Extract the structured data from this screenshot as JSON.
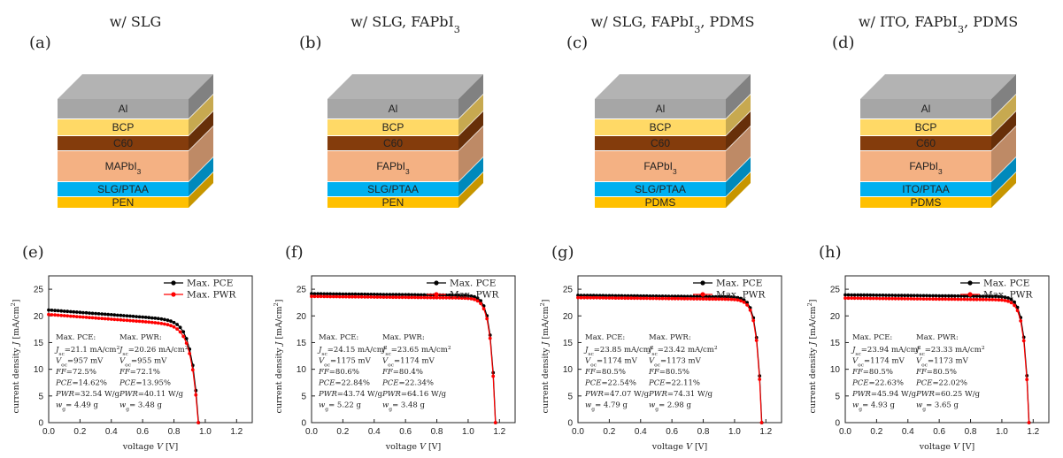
{
  "panels": [
    {
      "title": "w/ SLG",
      "stack_label": "(a)",
      "layers": [
        "Al",
        "BCP",
        "C60",
        "MAPbI3",
        "SLG/PTAA",
        "PEN"
      ],
      "chart_label": "(e)",
      "annotation": {
        "pce_head": "Max. PCE:",
        "pwr_head": "Max. PWR:",
        "pce_lines": [
          "Jsc=21.1 mA/cm²",
          "Voc=957 mV",
          "FF=72.5%",
          "PCE=14.62%",
          "PWR=32.54 W/g",
          "wg= 4.49 g"
        ],
        "pwr_lines": [
          "Jsc=20.26 mA/cm²",
          "Voc=955 mV",
          "FF=72.1%",
          "PCE=13.95%",
          "PWR=40.11 W/g",
          "wg= 3.48 g"
        ]
      }
    },
    {
      "title": "w/ SLG, FAPbI3",
      "stack_label": "(b)",
      "layers": [
        "Al",
        "BCP",
        "C60",
        "FAPbI3",
        "SLG/PTAA",
        "PEN"
      ],
      "chart_label": "(f)",
      "annotation": {
        "pce_head": "Max. PCE:",
        "pwr_head": "Max. PWR:",
        "pce_lines": [
          "Jsc=24.15 mA/cm²",
          "Voc=1175 mV",
          "FF=80.6%",
          "PCE=22.84%",
          "PWR=43.74 W/g",
          "wg= 5.22 g"
        ],
        "pwr_lines": [
          "Jsc=23.65 mA/cm²",
          "Voc=1174 mV",
          "FF=80.4%",
          "PCE=22.34%",
          "PWR=64.16 W/g",
          "wg= 3.48 g"
        ]
      }
    },
    {
      "title": "w/ SLG, FAPbI3, PDMS",
      "stack_label": "(c)",
      "layers": [
        "Al",
        "BCP",
        "C60",
        "FAPbI3",
        "SLG/PTAA",
        "PDMS"
      ],
      "chart_label": "(g)",
      "annotation": {
        "pce_head": "Max. PCE:",
        "pwr_head": "Max. PWR:",
        "pce_lines": [
          "Jsc=23.85 mA/cm²",
          "Voc=1174 mV",
          "FF=80.5%",
          "PCE=22.54%",
          "PWR=47.07 W/g",
          "wg= 4.79 g"
        ],
        "pwr_lines": [
          "Jsc=23.42 mA/cm²",
          "Voc=1173 mV",
          "FF=80.5%",
          "PCE=22.11%",
          "PWR=74.31 W/g",
          "wg= 2.98 g"
        ]
      }
    },
    {
      "title": "w/ ITO, FAPbI3, PDMS",
      "stack_label": "(d)",
      "layers": [
        "Al",
        "BCP",
        "C60",
        "FAPbI3",
        "ITO/PTAA",
        "PDMS"
      ],
      "chart_label": "(h)",
      "annotation": {
        "pce_head": "Max. PCE:",
        "pwr_head": "Max. PWR:",
        "pce_lines": [
          "Jsc=23.94 mA/cm²",
          "Voc=1174 mV",
          "FF=80.5%",
          "PCE=22.63%",
          "PWR=45.94 W/g",
          "wg= 4.93 g"
        ],
        "pwr_lines": [
          "Jsc=23.33 mA/cm²",
          "Voc=1173 mV",
          "FF=80.5%",
          "PCE=22.02%",
          "PWR=60.25 W/g",
          "wg= 3.65 g"
        ]
      }
    }
  ],
  "layer_colors": {
    "Al": "#a6a6a6",
    "BCP": "#ffd966",
    "C60": "#843c0c",
    "absorber": "#f4b183",
    "HTL": "#00b0f0",
    "substrate": "#ffc000"
  },
  "series_colors": {
    "pce": "#000000",
    "pwr": "#ff0000"
  },
  "chart_data": [
    {
      "type": "line",
      "xlabel": "voltage V [V]",
      "ylabel": "current density J [mA/cm²]",
      "xlim": [
        0,
        1.3
      ],
      "ylim": [
        0,
        27.5
      ],
      "xticks": [
        "0.0",
        "0.2",
        "0.4",
        "0.6",
        "0.8",
        "1.0",
        "1.2"
      ],
      "yticks": [
        "0",
        "5",
        "10",
        "15",
        "20",
        "25"
      ],
      "legend": "top-right",
      "series": [
        {
          "name": "Max. PCE",
          "jsc": 21.1,
          "voc": 0.957,
          "slope": 2.2,
          "vt": 0.045
        },
        {
          "name": "Max. PWR",
          "jsc": 20.26,
          "voc": 0.955,
          "slope": 2.2,
          "vt": 0.045
        }
      ]
    },
    {
      "type": "line",
      "xlabel": "voltage V [V]",
      "ylabel": "current density J [mA/cm²]",
      "xlim": [
        0,
        1.3
      ],
      "ylim": [
        0,
        27.5
      ],
      "xticks": [
        "0.0",
        "0.2",
        "0.4",
        "0.6",
        "0.8",
        "1.0",
        "1.2"
      ],
      "yticks": [
        "0",
        "5",
        "10",
        "15",
        "20",
        "25"
      ],
      "legend": "top-right",
      "series": [
        {
          "name": "Max. PCE",
          "jsc": 24.15,
          "voc": 1.175,
          "slope": 0.3,
          "vt": 0.03
        },
        {
          "name": "Max. PWR",
          "jsc": 23.65,
          "voc": 1.174,
          "slope": 0.3,
          "vt": 0.03
        }
      ]
    },
    {
      "type": "line",
      "xlabel": "voltage V [V]",
      "ylabel": "current density J [mA/cm²]",
      "xlim": [
        0,
        1.3
      ],
      "ylim": [
        0,
        27.5
      ],
      "xticks": [
        "0.0",
        "0.2",
        "0.4",
        "0.6",
        "0.8",
        "1.0",
        "1.2"
      ],
      "yticks": [
        "0",
        "5",
        "10",
        "15",
        "20",
        "25"
      ],
      "legend": "top-right",
      "series": [
        {
          "name": "Max. PCE",
          "jsc": 23.85,
          "voc": 1.174,
          "slope": 0.3,
          "vt": 0.03
        },
        {
          "name": "Max. PWR",
          "jsc": 23.42,
          "voc": 1.173,
          "slope": 0.3,
          "vt": 0.03
        }
      ]
    },
    {
      "type": "line",
      "xlabel": "voltage V [V]",
      "ylabel": "current density J [mA/cm²]",
      "xlim": [
        0,
        1.3
      ],
      "ylim": [
        0,
        27.5
      ],
      "xticks": [
        "0.0",
        "0.2",
        "0.4",
        "0.6",
        "0.8",
        "1.0",
        "1.2"
      ],
      "yticks": [
        "0",
        "5",
        "10",
        "15",
        "20",
        "25"
      ],
      "legend": "top-right",
      "series": [
        {
          "name": "Max. PCE",
          "jsc": 23.94,
          "voc": 1.174,
          "slope": 0.3,
          "vt": 0.03
        },
        {
          "name": "Max. PWR",
          "jsc": 23.33,
          "voc": 1.173,
          "slope": 0.3,
          "vt": 0.03
        }
      ]
    }
  ]
}
